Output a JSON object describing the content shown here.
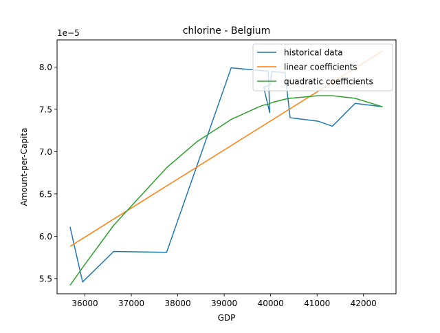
{
  "chart_data": {
    "type": "line",
    "title": "chlorine - Belgium",
    "xlabel": "GDP",
    "ylabel": "Amount-per-Capita",
    "offset_text": "1e−5",
    "xlim": [
      35400,
      42700
    ],
    "ylim": [
      5.32,
      8.32
    ],
    "x_ticks": [
      36000,
      37000,
      38000,
      39000,
      40000,
      41000,
      42000
    ],
    "x_tick_labels": [
      "36000",
      "37000",
      "38000",
      "39000",
      "40000",
      "41000",
      "42000"
    ],
    "y_ticks": [
      5.5,
      6.0,
      6.5,
      7.0,
      7.5,
      8.0
    ],
    "y_tick_labels": [
      "5.5",
      "6.0",
      "6.5",
      "7.0",
      "7.5",
      "8.0"
    ],
    "legend_position": "upper right",
    "grid": false,
    "series": [
      {
        "name": "historical data",
        "color": "#1f77b4",
        "x": [
          35680,
          35950,
          36620,
          37760,
          39150,
          39950,
          39980,
          39850,
          39990,
          40030,
          40310,
          40420,
          41020,
          41330,
          41820,
          42410
        ],
        "y": [
          6.11,
          5.46,
          5.82,
          5.81,
          7.99,
          7.95,
          7.46,
          7.76,
          7.79,
          7.95,
          7.93,
          7.4,
          7.36,
          7.3,
          7.57,
          7.53
        ]
      },
      {
        "name": "linear coefficients",
        "color": "#ff7f0e",
        "x": [
          35680,
          42410
        ],
        "y": [
          5.88,
          8.19
        ]
      },
      {
        "name": "quadratic coefficients",
        "color": "#2ca02c",
        "x": [
          35680,
          35950,
          36620,
          37760,
          38420,
          39150,
          39750,
          39850,
          39950,
          39990,
          40030,
          40310,
          40420,
          41020,
          41330,
          41820,
          42410
        ],
        "y": [
          5.42,
          5.63,
          6.13,
          6.81,
          7.12,
          7.38,
          7.53,
          7.55,
          7.56,
          7.57,
          7.58,
          7.62,
          7.63,
          7.66,
          7.66,
          7.63,
          7.53
        ]
      }
    ]
  }
}
